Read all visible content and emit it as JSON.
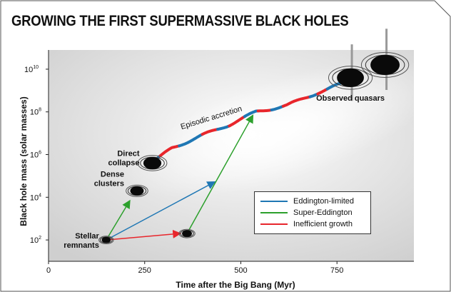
{
  "chart_data": {
    "type": "line",
    "title": "GROWING THE FIRST SUPERMASSIVE BLACK HOLES",
    "xlabel": "Time after the Big Bang (Myr)",
    "ylabel": "Black hole mass (solar masses)",
    "x_ticks": [
      {
        "value": 0,
        "label": "0"
      },
      {
        "value": 250,
        "label": "250"
      },
      {
        "value": 500,
        "label": "500"
      },
      {
        "value": 750,
        "label": "750"
      }
    ],
    "y_ticks": [
      {
        "exp": 2,
        "label": "10",
        "sup": "2"
      },
      {
        "exp": 4,
        "label": "10",
        "sup": "4"
      },
      {
        "exp": 6,
        "label": "10",
        "sup": "6"
      },
      {
        "exp": 8,
        "label": "10",
        "sup": "8"
      },
      {
        "exp": 10,
        "label": "10",
        "sup": "10"
      }
    ],
    "xlim": [
      0,
      950
    ],
    "ylim_log10": [
      1.0,
      10.9
    ],
    "y_scale": "log",
    "legend_position": "bottom-right",
    "legend": [
      {
        "name": "Eddington-limited",
        "color": "#1f77b4"
      },
      {
        "name": "Super-Eddington",
        "color": "#2ca02c"
      },
      {
        "name": "Inefficient growth",
        "color": "#e8262c"
      }
    ],
    "objects": [
      {
        "label": "Stellar\nremnants",
        "x": 150,
        "log10_mass": 2.0,
        "size": 1
      },
      {
        "label": "Dense\nclusters",
        "x": 230,
        "log10_mass": 4.3,
        "size": 2
      },
      {
        "label": "Direct\ncollapse",
        "x": 270,
        "log10_mass": 5.6,
        "size": 3
      },
      {
        "label": "",
        "x": 360,
        "log10_mass": 2.3,
        "size": 1.2
      },
      {
        "label": "Observed quasars",
        "x": 785,
        "log10_mass": 9.6,
        "size": 5
      },
      {
        "label": "",
        "x": 875,
        "log10_mass": 10.2,
        "size": 5.5
      }
    ],
    "arrows": [
      {
        "kind": "Super-Eddington",
        "from": [
          150,
          2.0
        ],
        "to": [
          210,
          3.8
        ]
      },
      {
        "kind": "Eddington-limited",
        "from": [
          150,
          2.0
        ],
        "to": [
          430,
          4.7
        ]
      },
      {
        "kind": "Inefficient growth",
        "from": [
          150,
          2.0
        ],
        "to": [
          340,
          2.3
        ]
      },
      {
        "kind": "Super-Eddington",
        "from": [
          360,
          2.3
        ],
        "to": [
          530,
          7.8
        ]
      }
    ],
    "main_curve_annotation": "Episodic accretion",
    "main_curve": [
      {
        "x": 270,
        "y": 5.6
      },
      {
        "x": 320,
        "y": 6.3
      },
      {
        "x": 400,
        "y": 6.9
      },
      {
        "x": 470,
        "y": 7.4
      },
      {
        "x": 540,
        "y": 8.0
      },
      {
        "x": 620,
        "y": 8.3
      },
      {
        "x": 700,
        "y": 8.9
      },
      {
        "x": 760,
        "y": 9.3
      },
      {
        "x": 785,
        "y": 9.6
      }
    ],
    "main_curve_segments": [
      {
        "from": 270,
        "to": 290,
        "kind": "Eddington-limited"
      },
      {
        "from": 290,
        "to": 340,
        "kind": "Inefficient growth"
      },
      {
        "from": 340,
        "to": 400,
        "kind": "Eddington-limited"
      },
      {
        "from": 400,
        "to": 440,
        "kind": "Inefficient growth"
      },
      {
        "from": 440,
        "to": 470,
        "kind": "Eddington-limited"
      },
      {
        "from": 470,
        "to": 510,
        "kind": "Inefficient growth"
      },
      {
        "from": 510,
        "to": 545,
        "kind": "Eddington-limited"
      },
      {
        "from": 545,
        "to": 580,
        "kind": "Inefficient growth"
      },
      {
        "from": 580,
        "to": 610,
        "kind": "Eddington-limited"
      },
      {
        "from": 610,
        "to": 680,
        "kind": "Inefficient growth"
      },
      {
        "from": 680,
        "to": 700,
        "kind": "Eddington-limited"
      },
      {
        "from": 700,
        "to": 725,
        "kind": "Inefficient growth"
      },
      {
        "from": 725,
        "to": 785,
        "kind": "Eddington-limited"
      }
    ]
  }
}
